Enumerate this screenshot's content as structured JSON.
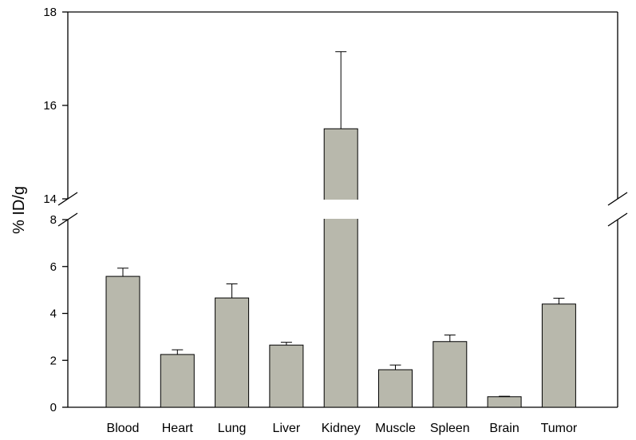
{
  "chart_data": {
    "type": "bar",
    "title": "",
    "xlabel": "",
    "ylabel": "% ID/g",
    "categories": [
      "Blood",
      "Heart",
      "Lung",
      "Liver",
      "Kidney",
      "Muscle",
      "Spleen",
      "Brain",
      "Tumor"
    ],
    "values": [
      5.58,
      2.25,
      4.66,
      2.65,
      15.5,
      1.6,
      2.8,
      0.45,
      4.4
    ],
    "errors": [
      0.35,
      0.2,
      0.6,
      0.12,
      1.65,
      0.2,
      0.28,
      0.02,
      0.25
    ],
    "y_axis_break": {
      "lower_range": [
        0,
        8
      ],
      "upper_range": [
        14,
        18
      ]
    },
    "lower_ticks": [
      "0",
      "2",
      "4",
      "6",
      "8"
    ],
    "upper_ticks": [
      "14",
      "16",
      "18"
    ],
    "bar_color": "#b8b8ac",
    "grid": false,
    "legend": "none"
  }
}
